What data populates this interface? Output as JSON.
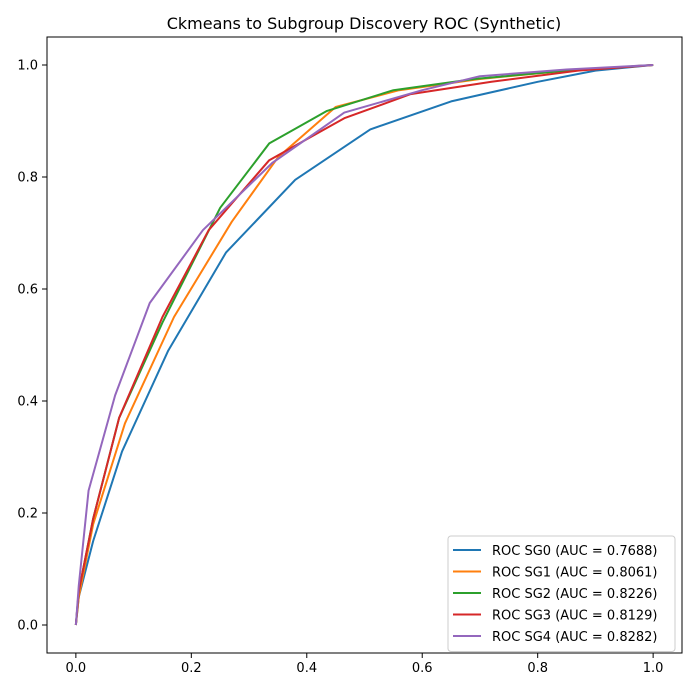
{
  "chart_data": {
    "type": "line",
    "title": "Ckmeans to Subgroup Discovery ROC (Synthetic)",
    "xlabel": "",
    "ylabel": "",
    "xlim": [
      -0.05,
      1.05
    ],
    "ylim": [
      -0.05,
      1.05
    ],
    "xticks": [
      {
        "value": 0.0,
        "label": "0.0"
      },
      {
        "value": 0.2,
        "label": "0.2"
      },
      {
        "value": 0.4,
        "label": "0.4"
      },
      {
        "value": 0.6,
        "label": "0.6"
      },
      {
        "value": 0.8,
        "label": "0.8"
      },
      {
        "value": 1.0,
        "label": "1.0"
      }
    ],
    "yticks": [
      {
        "value": 0.0,
        "label": "0.0"
      },
      {
        "value": 0.2,
        "label": "0.2"
      },
      {
        "value": 0.4,
        "label": "0.4"
      },
      {
        "value": 0.6,
        "label": "0.6"
      },
      {
        "value": 0.8,
        "label": "0.8"
      },
      {
        "value": 1.0,
        "label": "1.0"
      }
    ],
    "grid": false,
    "legend_position": "bottom-right",
    "series": [
      {
        "name": "ROC SG0 (AUC = 0.7688)",
        "color": "#1f77b4",
        "points": [
          [
            0,
            0
          ],
          [
            0.005,
            0.05
          ],
          [
            0.03,
            0.15
          ],
          [
            0.08,
            0.31
          ],
          [
            0.16,
            0.49
          ],
          [
            0.26,
            0.665
          ],
          [
            0.38,
            0.795
          ],
          [
            0.51,
            0.885
          ],
          [
            0.65,
            0.935
          ],
          [
            0.8,
            0.97
          ],
          [
            0.9,
            0.99
          ],
          [
            1,
            1
          ]
        ]
      },
      {
        "name": "ROC SG1 (AUC = 0.8061)",
        "color": "#ff7f0e",
        "points": [
          [
            0,
            0
          ],
          [
            0.005,
            0.05
          ],
          [
            0.03,
            0.18
          ],
          [
            0.085,
            0.36
          ],
          [
            0.17,
            0.55
          ],
          [
            0.27,
            0.72
          ],
          [
            0.35,
            0.835
          ],
          [
            0.45,
            0.925
          ],
          [
            0.56,
            0.955
          ],
          [
            0.7,
            0.975
          ],
          [
            0.85,
            0.99
          ],
          [
            1,
            1
          ]
        ]
      },
      {
        "name": "ROC SG2 (AUC = 0.8226)",
        "color": "#2ca02c",
        "points": [
          [
            0,
            0
          ],
          [
            0.005,
            0.06
          ],
          [
            0.03,
            0.19
          ],
          [
            0.075,
            0.37
          ],
          [
            0.15,
            0.54
          ],
          [
            0.25,
            0.745
          ],
          [
            0.335,
            0.86
          ],
          [
            0.435,
            0.918
          ],
          [
            0.55,
            0.955
          ],
          [
            0.69,
            0.975
          ],
          [
            0.85,
            0.99
          ],
          [
            1,
            1
          ]
        ]
      },
      {
        "name": "ROC SG3 (AUC = 0.8129)",
        "color": "#d62728",
        "points": [
          [
            0,
            0
          ],
          [
            0.005,
            0.06
          ],
          [
            0.03,
            0.19
          ],
          [
            0.075,
            0.37
          ],
          [
            0.15,
            0.55
          ],
          [
            0.23,
            0.705
          ],
          [
            0.335,
            0.83
          ],
          [
            0.465,
            0.905
          ],
          [
            0.58,
            0.948
          ],
          [
            0.72,
            0.97
          ],
          [
            0.87,
            0.99
          ],
          [
            1,
            1
          ]
        ]
      },
      {
        "name": "ROC SG4 (AUC = 0.8282)",
        "color": "#9467bd",
        "points": [
          [
            0,
            0
          ],
          [
            0.005,
            0.07
          ],
          [
            0.022,
            0.24
          ],
          [
            0.068,
            0.41
          ],
          [
            0.128,
            0.575
          ],
          [
            0.22,
            0.705
          ],
          [
            0.34,
            0.825
          ],
          [
            0.465,
            0.915
          ],
          [
            0.6,
            0.955
          ],
          [
            0.7,
            0.98
          ],
          [
            0.85,
            0.992
          ],
          [
            1,
            1
          ]
        ]
      }
    ]
  }
}
